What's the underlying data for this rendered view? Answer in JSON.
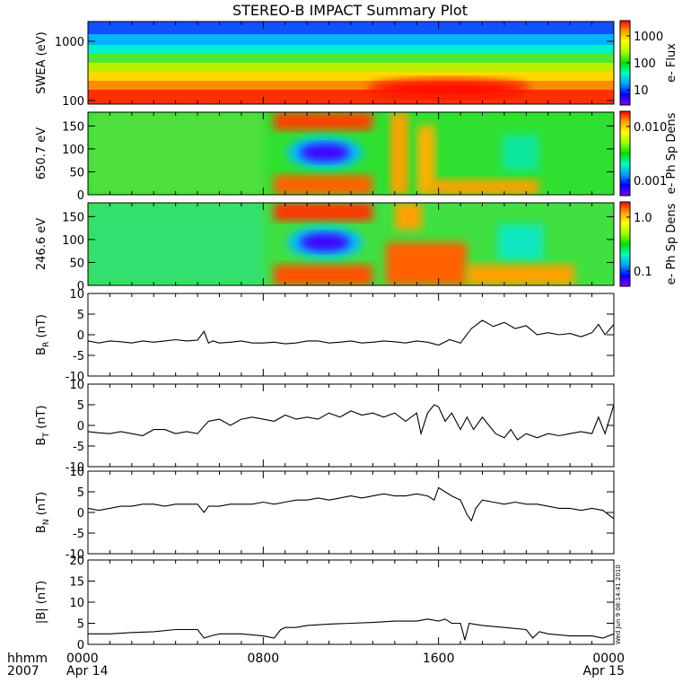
{
  "title": "STEREO-B IMPACT Summary Plot",
  "stamp": "Wed Jun  9 08:14:41 2010",
  "x_axis": {
    "label_line1": "hhmm",
    "label_line2": "2007",
    "ticks": [
      {
        "hour": 0,
        "label": "0000",
        "sublabel": "Apr 14"
      },
      {
        "hour": 8,
        "label": "0800",
        "sublabel": ""
      },
      {
        "hour": 16,
        "label": "1600",
        "sublabel": ""
      },
      {
        "hour": 24,
        "label": "0000",
        "sublabel": "Apr 15"
      }
    ],
    "range_hours": [
      0,
      24
    ]
  },
  "colorscale": [
    "#8000ff",
    "#0000ff",
    "#00a0ff",
    "#00ffc0",
    "#00e000",
    "#a0ff00",
    "#ffff00",
    "#ffa000",
    "#ff0000"
  ],
  "chart_data": [
    {
      "type": "heatmap",
      "ylabel": "SWEA (eV)",
      "yscale": "log",
      "yticks": [
        "1000",
        "100"
      ],
      "colorbar": {
        "label": "e- Flux",
        "scale": "log",
        "ticks": [
          "1000",
          "100",
          "10"
        ]
      }
    },
    {
      "type": "heatmap",
      "ylabel": "650.7 eV",
      "ylim": [
        0,
        180
      ],
      "yticks": [
        "150",
        "100",
        "50",
        "0"
      ],
      "colorbar": {
        "label": "e- Ph Sp Dens",
        "scale": "log",
        "ticks": [
          "0.010",
          "0.001"
        ]
      }
    },
    {
      "type": "heatmap",
      "ylabel": "246.6 eV",
      "ylim": [
        0,
        180
      ],
      "yticks": [
        "150",
        "100",
        "50",
        "0"
      ],
      "colorbar": {
        "label": "e- Ph Sp Dens",
        "scale": "log",
        "ticks": [
          "1.0",
          "0.1"
        ]
      }
    },
    {
      "type": "line",
      "ylabel": "B",
      "ylabel_sub": "R",
      "ylabel_unit": "(nT)",
      "ylim": [
        -10,
        10
      ],
      "yticks": [
        "10",
        "5",
        "0",
        "-5",
        "-10"
      ],
      "x": [
        0,
        0.5,
        1,
        1.5,
        2,
        2.5,
        3,
        3.5,
        4,
        4.5,
        5,
        5.3,
        5.5,
        5.7,
        6,
        6.5,
        7,
        7.5,
        8,
        8.5,
        9,
        9.5,
        10,
        10.5,
        11,
        11.5,
        12,
        12.5,
        13,
        13.5,
        14,
        14.5,
        15,
        15.5,
        16,
        16.5,
        17,
        17.5,
        18,
        18.5,
        19,
        19.5,
        20,
        20.5,
        21,
        21.5,
        22,
        22.5,
        23,
        23.3,
        23.6,
        24
      ],
      "y": [
        -1.5,
        -2,
        -1.5,
        -1.7,
        -2,
        -1.5,
        -1.8,
        -1.5,
        -1.2,
        -1.5,
        -1.3,
        0.8,
        -2,
        -1.5,
        -2,
        -1.8,
        -1.5,
        -2,
        -2,
        -1.8,
        -2.2,
        -2,
        -1.5,
        -1.5,
        -2,
        -1.8,
        -1.5,
        -2,
        -1.8,
        -1.5,
        -1.7,
        -2,
        -1.5,
        -1.8,
        -2.5,
        -1.2,
        -2,
        1.5,
        3.5,
        2,
        3,
        1.5,
        2.2,
        0,
        0.5,
        0,
        0.3,
        -0.5,
        0.5,
        2.5,
        0,
        2.5
      ]
    },
    {
      "type": "line",
      "ylabel": "B",
      "ylabel_sub": "T",
      "ylabel_unit": "(nT)",
      "ylim": [
        -10,
        10
      ],
      "yticks": [
        "10",
        "5",
        "0",
        "-5",
        "-10"
      ],
      "x": [
        0,
        0.5,
        1,
        1.5,
        2,
        2.5,
        3,
        3.5,
        4,
        4.5,
        5,
        5.5,
        6,
        6.5,
        7,
        7.5,
        8,
        8.5,
        9,
        9.5,
        10,
        10.5,
        11,
        11.5,
        12,
        12.5,
        13,
        13.5,
        14,
        14.5,
        15,
        15.2,
        15.5,
        15.8,
        16,
        16.3,
        16.6,
        17,
        17.3,
        17.6,
        18,
        18.3,
        18.6,
        19,
        19.3,
        19.6,
        20,
        20.5,
        21,
        21.5,
        22,
        22.5,
        23,
        23.3,
        23.6,
        24
      ],
      "y": [
        -1.5,
        -1.8,
        -2,
        -1.5,
        -2,
        -2.5,
        -1,
        -1,
        -2,
        -1.5,
        -2,
        1,
        1.5,
        0,
        1.5,
        2,
        1.5,
        1,
        2.5,
        1.5,
        2,
        1.5,
        3,
        2,
        3.5,
        2.5,
        3,
        2,
        3,
        1,
        3,
        -2,
        3,
        5,
        4.5,
        1,
        3,
        -1,
        2,
        -1,
        2,
        0,
        -2,
        -3,
        -1,
        -3.5,
        -2,
        -3,
        -2,
        -2.5,
        -2,
        -1.5,
        -2,
        2,
        -2,
        5
      ]
    },
    {
      "type": "line",
      "ylabel": "B",
      "ylabel_sub": "N",
      "ylabel_unit": "(nT)",
      "ylim": [
        -10,
        10
      ],
      "yticks": [
        "10",
        "5",
        "0",
        "-5",
        "-10"
      ],
      "x": [
        0,
        0.5,
        1,
        1.5,
        2,
        2.5,
        3,
        3.5,
        4,
        4.5,
        5,
        5.3,
        5.5,
        6,
        6.5,
        7,
        7.5,
        8,
        8.5,
        9,
        9.5,
        10,
        10.5,
        11,
        11.5,
        12,
        12.5,
        13,
        13.5,
        14,
        14.5,
        15,
        15.5,
        15.8,
        16,
        16.3,
        16.6,
        17,
        17.3,
        17.5,
        17.7,
        18,
        18.5,
        19,
        19.5,
        20,
        20.5,
        21,
        21.5,
        22,
        22.5,
        23,
        23.5,
        24
      ],
      "y": [
        1,
        0.5,
        1,
        1.5,
        1.5,
        2,
        2,
        1.5,
        2,
        2,
        2,
        0,
        1.5,
        1.5,
        2,
        2,
        2,
        2.5,
        2,
        2.5,
        3,
        3,
        3.5,
        3,
        3.5,
        4,
        3.5,
        4,
        4.5,
        4,
        4,
        4.5,
        4,
        3,
        6,
        5,
        4,
        3,
        -0.5,
        -2,
        1,
        3,
        2.5,
        2,
        2.5,
        2,
        2,
        1.5,
        1,
        1,
        0.5,
        1,
        0.5,
        -1.5
      ]
    },
    {
      "type": "line",
      "ylabel": "|B| (nT)",
      "ylim": [
        0,
        20
      ],
      "yticks": [
        "20",
        "15",
        "10",
        "5",
        "0"
      ],
      "x": [
        0,
        1,
        2,
        3,
        4,
        5,
        5.3,
        5.6,
        6,
        7,
        8,
        8.5,
        8.8,
        9,
        9.5,
        10,
        11,
        12,
        13,
        14,
        15,
        15.5,
        16,
        16.3,
        16.6,
        17,
        17.2,
        17.4,
        17.6,
        18,
        19,
        20,
        20.3,
        20.6,
        21,
        22,
        23,
        23.5,
        24
      ],
      "y": [
        2.5,
        2.5,
        2.8,
        3,
        3.5,
        3.5,
        1.5,
        2,
        2.5,
        2.5,
        2,
        1.5,
        3.5,
        4,
        4,
        4.5,
        4.8,
        5,
        5.2,
        5.5,
        5.5,
        6,
        5.5,
        6,
        5,
        5,
        1,
        5,
        4.8,
        4.5,
        4,
        3.5,
        1.5,
        3,
        2.5,
        2,
        2,
        1.5,
        2.5
      ]
    }
  ]
}
